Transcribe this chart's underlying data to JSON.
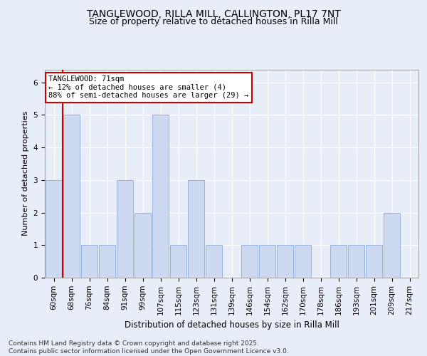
{
  "title1": "TANGLEWOOD, RILLA MILL, CALLINGTON, PL17 7NT",
  "title2": "Size of property relative to detached houses in Rilla Mill",
  "xlabel": "Distribution of detached houses by size in Rilla Mill",
  "ylabel": "Number of detached properties",
  "categories": [
    "60sqm",
    "68sqm",
    "76sqm",
    "84sqm",
    "91sqm",
    "99sqm",
    "107sqm",
    "115sqm",
    "123sqm",
    "131sqm",
    "139sqm",
    "146sqm",
    "154sqm",
    "162sqm",
    "170sqm",
    "178sqm",
    "186sqm",
    "193sqm",
    "201sqm",
    "209sqm",
    "217sqm"
  ],
  "values": [
    3,
    5,
    1,
    1,
    3,
    2,
    5,
    1,
    3,
    1,
    0,
    1,
    1,
    1,
    1,
    0,
    1,
    1,
    1,
    2,
    0
  ],
  "bar_color": "#ccd9f0",
  "bar_edge_color": "#99b3d9",
  "vline_x_index": 1,
  "vline_color": "#cc0000",
  "annotation_text": "TANGLEWOOD: 71sqm\n← 12% of detached houses are smaller (4)\n88% of semi-detached houses are larger (29) →",
  "annotation_box_color": "#ffffff",
  "annotation_box_edge_color": "#cc0000",
  "ylim": [
    0,
    6.4
  ],
  "yticks": [
    0,
    1,
    2,
    3,
    4,
    5,
    6
  ],
  "background_color": "#e8eef8",
  "plot_background_color": "#e8eef8",
  "footer_text": "Contains HM Land Registry data © Crown copyright and database right 2025.\nContains public sector information licensed under the Open Government Licence v3.0.",
  "title1_fontsize": 10,
  "title2_fontsize": 9,
  "xlabel_fontsize": 8.5,
  "ylabel_fontsize": 8,
  "tick_fontsize": 7.5,
  "annotation_fontsize": 7.5,
  "footer_fontsize": 6.5
}
